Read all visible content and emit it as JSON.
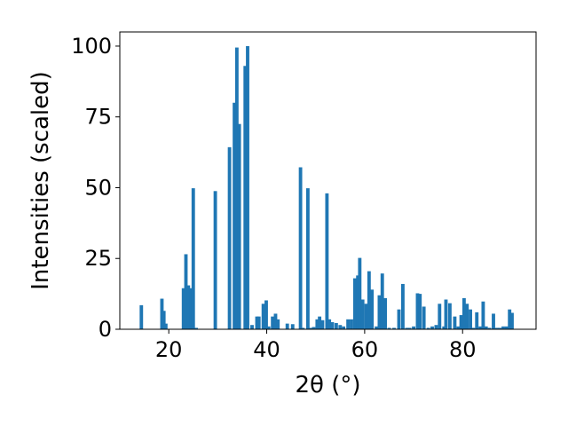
{
  "chart_data": {
    "type": "bar",
    "title": "",
    "xlabel": "2θ (°)",
    "ylabel": "Intensities (scaled)",
    "xlim": [
      10,
      95
    ],
    "ylim": [
      0,
      105
    ],
    "xticks": [
      20,
      40,
      60,
      80
    ],
    "yticks": [
      0,
      25,
      50,
      75,
      100
    ],
    "grid": false,
    "legend": "none",
    "bar_color": "#1f77b4",
    "bar_width": 0.7,
    "series": [
      {
        "x": [
          14.4,
          18.6,
          19.0,
          19.4,
          23.0,
          23.5,
          24.0,
          24.5,
          25.0,
          25.6,
          29.5,
          32.4,
          33.4,
          33.9,
          34.4,
          35.6,
          36.1,
          37.0,
          38.0,
          38.4,
          39.3,
          39.9,
          40.4,
          41.2,
          41.8,
          42.3,
          44.2,
          45.3,
          46.9,
          47.4,
          48.4,
          49.0,
          49.6,
          50.3,
          50.8,
          51.4,
          52.3,
          52.8,
          53.4,
          54.2,
          55.0,
          55.7,
          56.6,
          57.3,
          58.0,
          58.6,
          59.0,
          59.6,
          60.3,
          60.9,
          61.5,
          62.4,
          63.0,
          63.6,
          64.2,
          65.0,
          66.0,
          67.0,
          67.8,
          68.6,
          69.2,
          70.0,
          70.8,
          71.3,
          72.1,
          73.0,
          73.8,
          74.6,
          75.3,
          76.2,
          76.6,
          77.4,
          78.4,
          79.1,
          79.7,
          80.3,
          80.9,
          81.6,
          82.2,
          82.9,
          83.6,
          84.2,
          84.8,
          85.5,
          86.3,
          87.0,
          87.6,
          88.3,
          89.0,
          89.6,
          90.1
        ],
        "values": [
          8.5,
          10.8,
          6.5,
          2.0,
          14.5,
          26.5,
          15.5,
          14.5,
          49.8,
          0.5,
          48.8,
          64.3,
          80.0,
          99.5,
          72.5,
          93.0,
          100.0,
          1.5,
          4.5,
          4.5,
          9.0,
          10.2,
          1.0,
          4.5,
          5.5,
          3.5,
          2.0,
          1.8,
          57.2,
          0.5,
          49.8,
          0.5,
          0.8,
          3.5,
          4.5,
          3.2,
          48.0,
          3.5,
          2.5,
          2.2,
          1.5,
          1.0,
          3.5,
          3.5,
          18.0,
          19.0,
          25.2,
          10.5,
          9.0,
          20.5,
          14.0,
          1.0,
          12.0,
          19.7,
          11.0,
          0.5,
          0.5,
          7.0,
          16.0,
          0.5,
          0.5,
          1.0,
          12.7,
          12.5,
          8.0,
          0.5,
          1.0,
          1.5,
          9.0,
          1.0,
          10.5,
          9.2,
          4.5,
          1.0,
          5.0,
          11.0,
          9.0,
          7.0,
          0.5,
          6.0,
          1.0,
          9.8,
          1.0,
          0.5,
          5.5,
          0.5,
          0.5,
          1.0,
          1.0,
          7.0,
          5.8
        ]
      }
    ]
  }
}
